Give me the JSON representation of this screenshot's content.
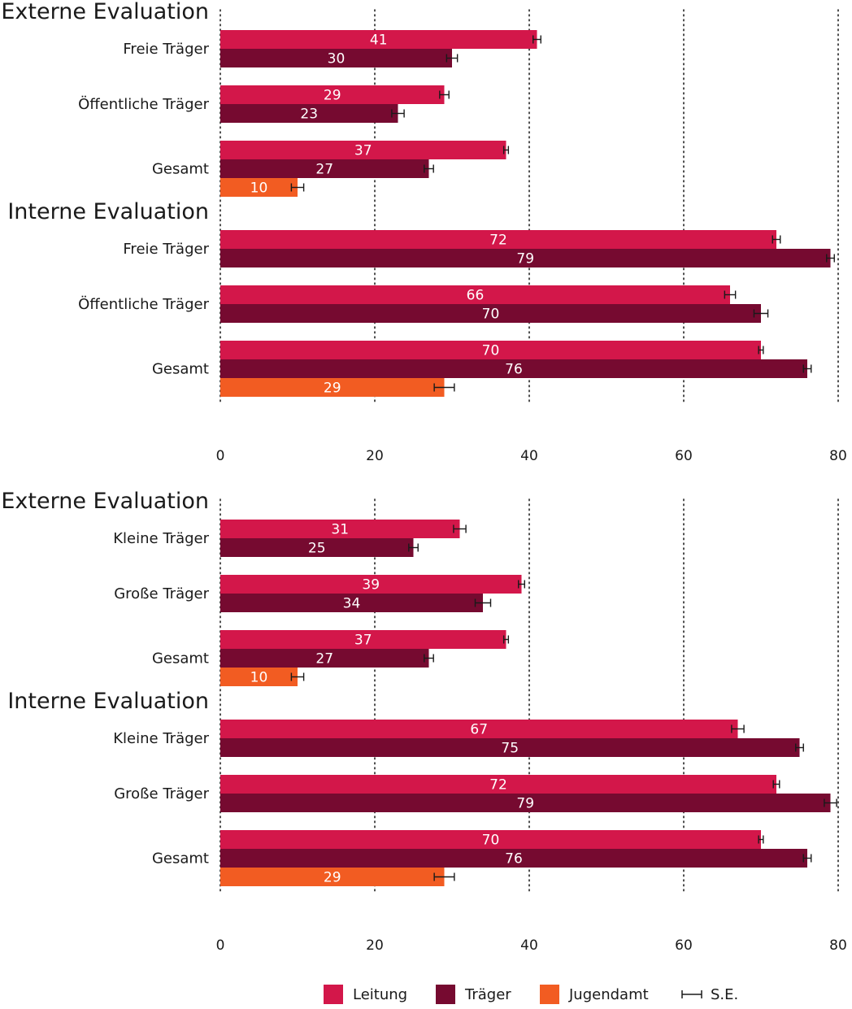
{
  "colors": {
    "leitung": "#d3174a",
    "traeger": "#760a30",
    "jugendamt": "#f25c22",
    "grid": "#222222",
    "errorbar": "#1a1a1a"
  },
  "legend": {
    "leitung": "Leitung",
    "traeger": "Träger",
    "jugendamt": "Jugendamt",
    "se": "S.E."
  },
  "chart_data": [
    {
      "type": "bar",
      "orientation": "horizontal",
      "xlim": [
        0,
        80
      ],
      "ticks": [
        0,
        20,
        40,
        60,
        80
      ],
      "grid": "dotted vertical",
      "legend_position": "bottom",
      "sections": [
        {
          "title": "Externe Evaluation",
          "groups": [
            {
              "label": "Freie Träger",
              "bars": [
                {
                  "series": "Leitung",
                  "value": 41,
                  "se": 0.5
                },
                {
                  "series": "Träger",
                  "value": 30,
                  "se": 0.7
                }
              ]
            },
            {
              "label": "Öffentliche Träger",
              "bars": [
                {
                  "series": "Leitung",
                  "value": 29,
                  "se": 0.6
                },
                {
                  "series": "Träger",
                  "value": 23,
                  "se": 0.8
                }
              ]
            },
            {
              "label": "Gesamt",
              "bars": [
                {
                  "series": "Leitung",
                  "value": 37,
                  "se": 0.3
                },
                {
                  "series": "Träger",
                  "value": 27,
                  "se": 0.6
                },
                {
                  "series": "Jugendamt",
                  "value": 10,
                  "se": 0.8
                }
              ]
            }
          ]
        },
        {
          "title": "Interne Evaluation",
          "groups": [
            {
              "label": "Freie Träger",
              "bars": [
                {
                  "series": "Leitung",
                  "value": 72,
                  "se": 0.5
                },
                {
                  "series": "Träger",
                  "value": 79,
                  "se": 0.5
                }
              ]
            },
            {
              "label": "Öffentliche Träger",
              "bars": [
                {
                  "series": "Leitung",
                  "value": 66,
                  "se": 0.7
                },
                {
                  "series": "Träger",
                  "value": 70,
                  "se": 0.9
                }
              ]
            },
            {
              "label": "Gesamt",
              "bars": [
                {
                  "series": "Leitung",
                  "value": 70,
                  "se": 0.3
                },
                {
                  "series": "Träger",
                  "value": 76,
                  "se": 0.5
                },
                {
                  "series": "Jugendamt",
                  "value": 29,
                  "se": 1.3
                }
              ]
            }
          ]
        }
      ]
    },
    {
      "type": "bar",
      "orientation": "horizontal",
      "xlim": [
        0,
        80
      ],
      "ticks": [
        0,
        20,
        40,
        60,
        80
      ],
      "grid": "dotted vertical",
      "legend_position": "bottom",
      "sections": [
        {
          "title": "Externe Evaluation",
          "groups": [
            {
              "label": "Kleine Träger",
              "bars": [
                {
                  "series": "Leitung",
                  "value": 31,
                  "se": 0.8
                },
                {
                  "series": "Träger",
                  "value": 25,
                  "se": 0.6
                }
              ]
            },
            {
              "label": "Große Träger",
              "bars": [
                {
                  "series": "Leitung",
                  "value": 39,
                  "se": 0.4
                },
                {
                  "series": "Träger",
                  "value": 34,
                  "se": 1.0
                }
              ]
            },
            {
              "label": "Gesamt",
              "bars": [
                {
                  "series": "Leitung",
                  "value": 37,
                  "se": 0.3
                },
                {
                  "series": "Träger",
                  "value": 27,
                  "se": 0.6
                },
                {
                  "series": "Jugendamt",
                  "value": 10,
                  "se": 0.8
                }
              ]
            }
          ]
        },
        {
          "title": "Interne Evaluation",
          "groups": [
            {
              "label": "Kleine Träger",
              "bars": [
                {
                  "series": "Leitung",
                  "value": 67,
                  "se": 0.8
                },
                {
                  "series": "Träger",
                  "value": 75,
                  "se": 0.5
                }
              ]
            },
            {
              "label": "Große Träger",
              "bars": [
                {
                  "series": "Leitung",
                  "value": 72,
                  "se": 0.4
                },
                {
                  "series": "Träger",
                  "value": 79,
                  "se": 0.8
                }
              ]
            },
            {
              "label": "Gesamt",
              "bars": [
                {
                  "series": "Leitung",
                  "value": 70,
                  "se": 0.3
                },
                {
                  "series": "Träger",
                  "value": 76,
                  "se": 0.5
                },
                {
                  "series": "Jugendamt",
                  "value": 29,
                  "se": 1.3
                }
              ]
            }
          ]
        }
      ]
    }
  ]
}
